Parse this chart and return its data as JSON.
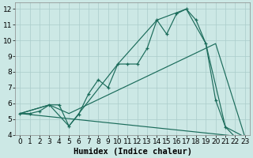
{
  "xlabel": "Humidex (Indice chaleur)",
  "xlim": [
    -0.5,
    23.5
  ],
  "ylim": [
    4,
    12.4
  ],
  "xticks": [
    0,
    1,
    2,
    3,
    4,
    5,
    6,
    7,
    8,
    9,
    10,
    11,
    12,
    13,
    14,
    15,
    16,
    17,
    18,
    19,
    20,
    21,
    22,
    23
  ],
  "yticks": [
    4,
    5,
    6,
    7,
    8,
    9,
    10,
    11,
    12
  ],
  "background_color": "#cce8e5",
  "grid_color": "#aaccca",
  "line_color": "#1a6b5a",
  "lines": [
    {
      "x": [
        0,
        1,
        2,
        3,
        4,
        5,
        6,
        7,
        8,
        9,
        10,
        11,
        12,
        13,
        14,
        15,
        16,
        17,
        18,
        19,
        20,
        21,
        22,
        23
      ],
      "y": [
        5.35,
        5.35,
        5.5,
        5.9,
        5.9,
        4.55,
        5.3,
        6.6,
        7.5,
        7.0,
        8.5,
        8.5,
        8.5,
        9.5,
        11.3,
        10.4,
        11.7,
        12.0,
        11.3,
        9.8,
        6.2,
        4.5,
        3.85,
        3.85
      ]
    },
    {
      "x": [
        0,
        3,
        5,
        10,
        14,
        17,
        19,
        21,
        23
      ],
      "y": [
        5.35,
        5.9,
        4.55,
        8.5,
        11.3,
        12.0,
        9.8,
        4.5,
        3.85
      ]
    },
    {
      "x": [
        0,
        3,
        5,
        20,
        23
      ],
      "y": [
        5.35,
        5.9,
        5.35,
        9.8,
        3.85
      ]
    },
    {
      "x": [
        0,
        23
      ],
      "y": [
        5.35,
        3.85
      ]
    }
  ],
  "font_size": 6.5,
  "xlabel_font_size": 7.5
}
